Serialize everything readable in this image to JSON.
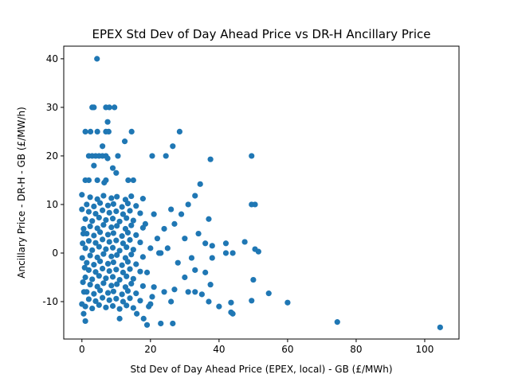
{
  "chart_data": {
    "type": "scatter",
    "title": "EPEX Std Dev of Day Ahead Price vs DR-H Ancillary Price",
    "x_label": "Std Dev of Day Ahead Price (EPEX, local) - GB (£/MWh)",
    "y_label": "Ancillary Price - DR-H - GB (£/MW/h)",
    "color": "#1f77b4",
    "xlim": [
      -5.3,
      110
    ],
    "ylim": [
      -17.7,
      42.6
    ],
    "xticks": [
      0,
      20,
      40,
      60,
      80,
      100
    ],
    "yticks": [
      -10,
      0,
      10,
      20,
      30,
      40
    ],
    "grid": false,
    "x": [
      1,
      3,
      5,
      7,
      9,
      11,
      13,
      15,
      1.4,
      3.5,
      5.3,
      7.6,
      9.2,
      11.7,
      13.4,
      15.8,
      1,
      3,
      5,
      7,
      9,
      11,
      13,
      15,
      1.4,
      3.5,
      5.3,
      7.6,
      9.2,
      11.7,
      13.4,
      15.8,
      1,
      3,
      5,
      7,
      9,
      11,
      13,
      15,
      1.4,
      3.5,
      5.3,
      7.6,
      9.2,
      11.7,
      13.4,
      15.8,
      1,
      3,
      5,
      7,
      9,
      11,
      13,
      15,
      1.4,
      3.5,
      5.3,
      7.6,
      9.2,
      11.7,
      13.4,
      15.8,
      2,
      4,
      6,
      8,
      10,
      12,
      14,
      17,
      2.4,
      4.5,
      6.3,
      8.6,
      10.2,
      12.7,
      14.4,
      17.8,
      2,
      4,
      6,
      8,
      10,
      12,
      14,
      17,
      2.4,
      4.5,
      6.3,
      8.6,
      10.2,
      12.7,
      14.4,
      17.8,
      2,
      4,
      6,
      8,
      10,
      12,
      14,
      17,
      2.4,
      4.5,
      6.3,
      8.6,
      10.2,
      12.7,
      14.4,
      17.8,
      2,
      4,
      6,
      8,
      10,
      12,
      14,
      17,
      2.4,
      4.5,
      6.3,
      8.6,
      10.2,
      12.7,
      14.4,
      17.8,
      0,
      0.5,
      0.2,
      0.8,
      0.3,
      0.6,
      0.1,
      0.4,
      19,
      20,
      21,
      22,
      18.5,
      20.5,
      22.5,
      19.5,
      4.4,
      3,
      3.5,
      7,
      8,
      9.5,
      7.5,
      1,
      2.5,
      4.5,
      7,
      7.8,
      14.5,
      28.5,
      12.5,
      26.5,
      6,
      2,
      3,
      4,
      5,
      6,
      7,
      10.5,
      20.5,
      24.5,
      49.5,
      37.5,
      7.5,
      9,
      3.5,
      10,
      1,
      2,
      4.5,
      6.5,
      7,
      13.5,
      15,
      34.5,
      33,
      0,
      49.5,
      50.5,
      47.5,
      50.5,
      51.5,
      50,
      54.5,
      60,
      74.5,
      104.5,
      43.5,
      43.5,
      44,
      40,
      37,
      37.5,
      49.5,
      42,
      44,
      38,
      42,
      37,
      31,
      26,
      23,
      26.5,
      0.5,
      1,
      0,
      18,
      19,
      11,
      16,
      24,
      27,
      31,
      33,
      35,
      30,
      33,
      36,
      30,
      34,
      36,
      38,
      24,
      27,
      29,
      21,
      20,
      26,
      25,
      28,
      32,
      23
    ],
    "y": [
      -11,
      -11.4,
      -10.7,
      -11.2,
      -10.9,
      -11.5,
      -10.8,
      -11.3,
      -8,
      -8.4,
      -7.7,
      -8.2,
      -7.9,
      -8.5,
      -7.8,
      -8.3,
      -5,
      -5.4,
      -4.7,
      -5.2,
      -4.9,
      -5.5,
      -4.8,
      -5.3,
      -2,
      -2.4,
      -1.7,
      -2.2,
      -1.9,
      -2.5,
      -1.8,
      -2.3,
      1,
      0.6,
      1.3,
      0.8,
      1.1,
      0.5,
      1.2,
      0.7,
      4,
      3.6,
      4.3,
      3.8,
      4.1,
      3.5,
      4.2,
      3.7,
      7,
      6.6,
      7.3,
      6.8,
      7.1,
      6.5,
      7.2,
      6.7,
      10,
      9.6,
      10.3,
      9.8,
      10.1,
      9.5,
      10.2,
      9.7,
      -9.5,
      -9.9,
      -9.2,
      -9.7,
      -9.4,
      -10,
      -9.3,
      -9.8,
      -6.5,
      -6.9,
      -6.2,
      -6.7,
      -6.4,
      -7,
      -6.3,
      -6.8,
      -3.5,
      -3.9,
      -3.2,
      -3.7,
      -3.4,
      -4,
      -3.3,
      -3.8,
      -0.5,
      -0.9,
      -0.2,
      -0.7,
      -0.4,
      -1,
      -0.3,
      -0.8,
      2.5,
      2.1,
      2.8,
      2.3,
      2.6,
      2,
      2.7,
      2.2,
      5.5,
      5.1,
      5.8,
      5.3,
      5.6,
      5,
      5.7,
      5.2,
      8.5,
      8.1,
      8.8,
      8.3,
      8.6,
      8,
      8.7,
      8.2,
      11.5,
      11.1,
      11.8,
      11.3,
      11.6,
      11,
      11.7,
      11.2,
      9,
      5,
      2,
      -3,
      -6,
      -8,
      -1,
      4,
      -4,
      1,
      -7,
      3,
      6,
      -9,
      0,
      -11,
      40,
      30,
      30,
      30,
      30,
      30,
      27,
      25,
      25,
      25,
      25,
      25,
      25,
      25,
      23,
      22,
      22,
      20,
      20,
      20,
      20,
      20,
      20,
      20,
      20,
      20,
      20,
      19.3,
      19.5,
      17.5,
      18,
      16.5,
      15,
      15,
      15,
      14.5,
      15,
      15,
      15,
      14.2,
      11.8,
      12,
      10,
      10,
      2.3,
      0.8,
      0.3,
      -5.5,
      -8.3,
      -10.2,
      -14.2,
      -15.3,
      -10.2,
      -12.2,
      -12.5,
      -11,
      -10,
      -6.5,
      -9.8,
      0,
      0,
      -1,
      2,
      7,
      10,
      9,
      -14.5,
      -14.5,
      -12.5,
      -14,
      -10.5,
      -13.5,
      -14.8,
      -13.5,
      -12.5,
      -8,
      -7.5,
      -8,
      -8,
      -8.5,
      -5,
      -3.5,
      -4,
      3,
      4,
      2,
      1.5,
      5,
      6,
      8,
      8,
      -10.5,
      -10,
      1,
      -2,
      -1,
      0
    ]
  }
}
